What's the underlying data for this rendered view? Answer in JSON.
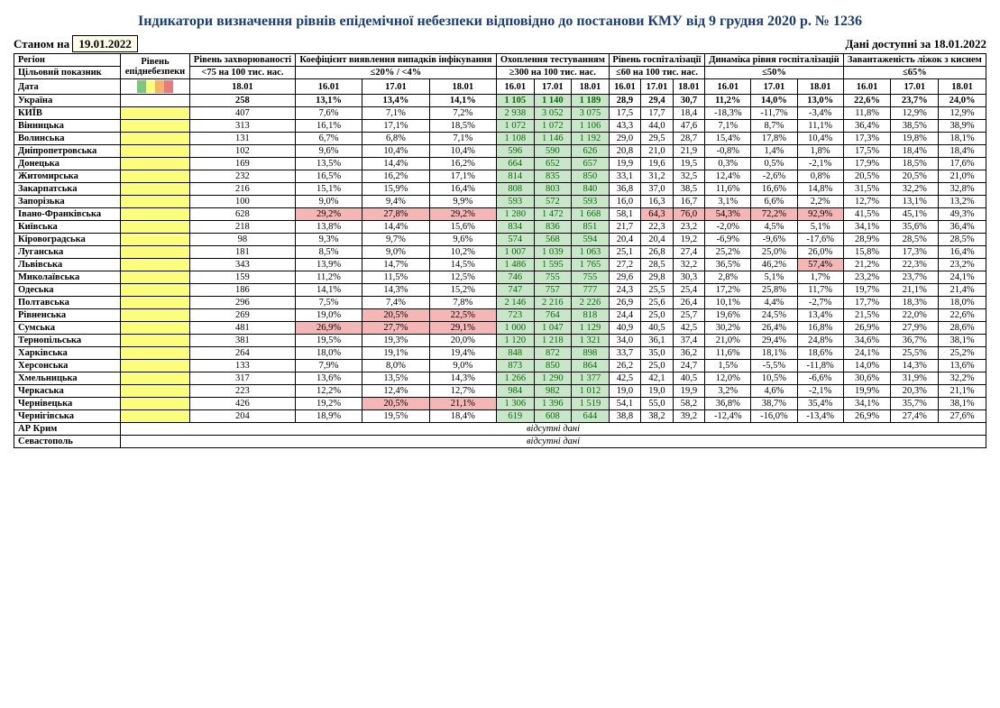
{
  "title": "Індикатори визначення рівнів епідемічної небезпеки відповідно до постанови КМУ від 9 грудня 2020 р. № 1236",
  "asOfLabel": "Станом на",
  "asOfDate": "19.01.2022",
  "availLabel": "Дані доступні за 18.01.2022",
  "headers": {
    "region": "Регіон",
    "danger": "Рівень епіднебезпеки",
    "incidence": "Рівень захворюваності",
    "detection": "Коефіцієнт виявлення випадків інфікування",
    "testing": "Охоплення тестуванням",
    "hosp": "Рівень госпіталізації",
    "hospDyn": "Динаміка рівня госпіталізацій",
    "oxygen": "Завантаженість ліжок з киснем",
    "target": "Цільовий показник",
    "date": "Дата",
    "t_incidence": "<75 на 100 тис. нас.",
    "t_detection": "≤20% / <4%",
    "t_testing": "≥300 на 100 тис. нас.",
    "t_hosp": "≤60 на 100 тис. нас.",
    "t_hospDyn": "≤50%",
    "t_oxygen": "≤65%",
    "d1": "16.01",
    "d2": "17.01",
    "d3": "18.01"
  },
  "noData": "відсутні дані",
  "legend": {
    "green": "#7cc57c",
    "yellow": "#fdfd7c",
    "orange": "#f5b26b",
    "red": "#e87c7c"
  },
  "cellColors": {
    "yellow": "#fdfd7c",
    "green": "#c8e6c8",
    "pink": "#f5b6b6"
  },
  "rows": [
    {
      "name": "Україна",
      "bold": true,
      "danger": "",
      "inc": "258",
      "det": [
        "13,1%",
        "13,4%",
        "14,1%"
      ],
      "detC": [
        "",
        "",
        ""
      ],
      "test": [
        "1 105",
        "1 140",
        "1 189"
      ],
      "testC": [
        "g",
        "g",
        "g"
      ],
      "hosp": [
        "28,9",
        "29,4",
        "30,7"
      ],
      "hdyn": [
        "11,2%",
        "14,0%",
        "13,0%"
      ],
      "hdynC": [
        "",
        "",
        ""
      ],
      "oxy": [
        "22,6%",
        "23,7%",
        "24,0%"
      ]
    },
    {
      "name": "КИЇВ",
      "danger": "y",
      "inc": "407",
      "det": [
        "7,6%",
        "7,1%",
        "7,2%"
      ],
      "detC": [
        "",
        "",
        ""
      ],
      "test": [
        "2 938",
        "3 052",
        "3 075"
      ],
      "testC": [
        "g",
        "g",
        "g"
      ],
      "hosp": [
        "17,5",
        "17,7",
        "18,4"
      ],
      "hdyn": [
        "-18,3%",
        "-11,7%",
        "-3,4%"
      ],
      "hdynC": [
        "",
        "",
        ""
      ],
      "oxy": [
        "11,8%",
        "12,9%",
        "12,9%"
      ]
    },
    {
      "name": "Вінницька",
      "danger": "y",
      "inc": "313",
      "det": [
        "16,1%",
        "17,1%",
        "18,5%"
      ],
      "detC": [
        "",
        "",
        ""
      ],
      "test": [
        "1 072",
        "1 072",
        "1 106"
      ],
      "testC": [
        "g",
        "g",
        "g"
      ],
      "hosp": [
        "43,3",
        "44,0",
        "47,6"
      ],
      "hdyn": [
        "7,1%",
        "8,7%",
        "11,1%"
      ],
      "hdynC": [
        "",
        "",
        ""
      ],
      "oxy": [
        "36,4%",
        "38,5%",
        "38,9%"
      ]
    },
    {
      "name": "Волинська",
      "danger": "y",
      "inc": "131",
      "det": [
        "6,7%",
        "6,8%",
        "7,1%"
      ],
      "detC": [
        "",
        "",
        ""
      ],
      "test": [
        "1 108",
        "1 146",
        "1 192"
      ],
      "testC": [
        "g",
        "g",
        "g"
      ],
      "hosp": [
        "29,0",
        "29,5",
        "28,7"
      ],
      "hdyn": [
        "15,4%",
        "17,8%",
        "10,4%"
      ],
      "hdynC": [
        "",
        "",
        ""
      ],
      "oxy": [
        "17,3%",
        "19,8%",
        "18,1%"
      ]
    },
    {
      "name": "Дніпропетровська",
      "danger": "y",
      "inc": "102",
      "det": [
        "9,6%",
        "10,4%",
        "10,4%"
      ],
      "detC": [
        "",
        "",
        ""
      ],
      "test": [
        "596",
        "590",
        "626"
      ],
      "testC": [
        "g",
        "g",
        "g"
      ],
      "hosp": [
        "20,8",
        "21,0",
        "21,9"
      ],
      "hdyn": [
        "-0,8%",
        "1,4%",
        "1,8%"
      ],
      "hdynC": [
        "",
        "",
        ""
      ],
      "oxy": [
        "17,5%",
        "18,4%",
        "18,4%"
      ]
    },
    {
      "name": "Донецька",
      "danger": "y",
      "inc": "169",
      "det": [
        "13,5%",
        "14,4%",
        "16,2%"
      ],
      "detC": [
        "",
        "",
        ""
      ],
      "test": [
        "664",
        "652",
        "657"
      ],
      "testC": [
        "g",
        "g",
        "g"
      ],
      "hosp": [
        "19,9",
        "19,6",
        "19,5"
      ],
      "hdyn": [
        "0,3%",
        "0,5%",
        "-2,1%"
      ],
      "hdynC": [
        "",
        "",
        ""
      ],
      "oxy": [
        "17,9%",
        "18,5%",
        "17,6%"
      ]
    },
    {
      "name": "Житомирська",
      "danger": "y",
      "inc": "232",
      "det": [
        "16,5%",
        "16,2%",
        "17,1%"
      ],
      "detC": [
        "",
        "",
        ""
      ],
      "test": [
        "814",
        "835",
        "850"
      ],
      "testC": [
        "g",
        "g",
        "g"
      ],
      "hosp": [
        "33,1",
        "31,2",
        "32,5"
      ],
      "hdyn": [
        "12,4%",
        "-2,6%",
        "0,8%"
      ],
      "hdynC": [
        "",
        "",
        ""
      ],
      "oxy": [
        "20,5%",
        "20,5%",
        "21,0%"
      ]
    },
    {
      "name": "Закарпатська",
      "danger": "y",
      "inc": "216",
      "det": [
        "15,1%",
        "15,9%",
        "16,4%"
      ],
      "detC": [
        "",
        "",
        ""
      ],
      "test": [
        "808",
        "803",
        "840"
      ],
      "testC": [
        "g",
        "g",
        "g"
      ],
      "hosp": [
        "36,8",
        "37,0",
        "38,5"
      ],
      "hdyn": [
        "11,6%",
        "16,6%",
        "14,8%"
      ],
      "hdynC": [
        "",
        "",
        ""
      ],
      "oxy": [
        "31,5%",
        "32,2%",
        "32,8%"
      ]
    },
    {
      "name": "Запорізька",
      "danger": "y",
      "inc": "100",
      "det": [
        "9,0%",
        "9,4%",
        "9,9%"
      ],
      "detC": [
        "",
        "",
        ""
      ],
      "test": [
        "593",
        "572",
        "593"
      ],
      "testC": [
        "g",
        "g",
        "g"
      ],
      "hosp": [
        "16,0",
        "16,3",
        "16,7"
      ],
      "hdyn": [
        "3,1%",
        "6,6%",
        "2,2%"
      ],
      "hdynC": [
        "",
        "",
        ""
      ],
      "oxy": [
        "12,7%",
        "13,1%",
        "13,2%"
      ]
    },
    {
      "name": "Івано-Франківська",
      "danger": "y",
      "inc": "628",
      "det": [
        "29,2%",
        "27,8%",
        "29,2%"
      ],
      "detC": [
        "p",
        "p",
        "p"
      ],
      "test": [
        "1 280",
        "1 472",
        "1 668"
      ],
      "testC": [
        "g",
        "g",
        "g"
      ],
      "hosp": [
        "58,1",
        "64,3",
        "76,0"
      ],
      "hospC": [
        "",
        "p",
        "p"
      ],
      "hdyn": [
        "54,3%",
        "72,2%",
        "92,9%"
      ],
      "hdynC": [
        "p",
        "p",
        "p"
      ],
      "oxy": [
        "41,5%",
        "45,1%",
        "49,3%"
      ]
    },
    {
      "name": "Київська",
      "danger": "y",
      "inc": "218",
      "det": [
        "13,8%",
        "14,4%",
        "15,6%"
      ],
      "detC": [
        "",
        "",
        ""
      ],
      "test": [
        "834",
        "836",
        "851"
      ],
      "testC": [
        "g",
        "g",
        "g"
      ],
      "hosp": [
        "21,7",
        "22,3",
        "23,2"
      ],
      "hdyn": [
        "-2,0%",
        "4,5%",
        "5,1%"
      ],
      "hdynC": [
        "",
        "",
        ""
      ],
      "oxy": [
        "34,1%",
        "35,6%",
        "36,4%"
      ]
    },
    {
      "name": "Кіровоградська",
      "danger": "y",
      "inc": "98",
      "det": [
        "9,3%",
        "9,7%",
        "9,6%"
      ],
      "detC": [
        "",
        "",
        ""
      ],
      "test": [
        "574",
        "568",
        "594"
      ],
      "testC": [
        "g",
        "g",
        "g"
      ],
      "hosp": [
        "20,4",
        "20,4",
        "19,2"
      ],
      "hdyn": [
        "-6,9%",
        "-9,6%",
        "-17,6%"
      ],
      "hdynC": [
        "",
        "",
        ""
      ],
      "oxy": [
        "28,9%",
        "28,5%",
        "28,5%"
      ]
    },
    {
      "name": "Луганська",
      "danger": "y",
      "inc": "181",
      "det": [
        "8,5%",
        "9,0%",
        "10,2%"
      ],
      "detC": [
        "",
        "",
        ""
      ],
      "test": [
        "1 007",
        "1 039",
        "1 063"
      ],
      "testC": [
        "g",
        "g",
        "g"
      ],
      "hosp": [
        "25,1",
        "26,8",
        "27,4"
      ],
      "hdyn": [
        "25,2%",
        "25,0%",
        "26,0%"
      ],
      "hdynC": [
        "",
        "",
        ""
      ],
      "oxy": [
        "15,8%",
        "17,3%",
        "16,4%"
      ]
    },
    {
      "name": "Львівська",
      "danger": "y",
      "inc": "343",
      "det": [
        "13,9%",
        "14,7%",
        "14,5%"
      ],
      "detC": [
        "",
        "",
        ""
      ],
      "test": [
        "1 486",
        "1 595",
        "1 765"
      ],
      "testC": [
        "g",
        "g",
        "g"
      ],
      "hosp": [
        "27,2",
        "28,5",
        "32,2"
      ],
      "hdyn": [
        "36,5%",
        "46,2%",
        "57,4%"
      ],
      "hdynC": [
        "",
        "",
        "p"
      ],
      "oxy": [
        "21,2%",
        "22,3%",
        "23,2%"
      ]
    },
    {
      "name": "Миколаївська",
      "danger": "y",
      "inc": "159",
      "det": [
        "11,2%",
        "11,5%",
        "12,5%"
      ],
      "detC": [
        "",
        "",
        ""
      ],
      "test": [
        "746",
        "755",
        "755"
      ],
      "testC": [
        "g",
        "g",
        "g"
      ],
      "hosp": [
        "29,6",
        "29,8",
        "30,3"
      ],
      "hdyn": [
        "2,8%",
        "5,1%",
        "1,7%"
      ],
      "hdynC": [
        "",
        "",
        ""
      ],
      "oxy": [
        "23,2%",
        "23,7%",
        "24,1%"
      ]
    },
    {
      "name": "Одеська",
      "danger": "y",
      "inc": "186",
      "det": [
        "14,1%",
        "14,3%",
        "15,2%"
      ],
      "detC": [
        "",
        "",
        ""
      ],
      "test": [
        "747",
        "757",
        "777"
      ],
      "testC": [
        "g",
        "g",
        "g"
      ],
      "hosp": [
        "24,3",
        "25,5",
        "25,4"
      ],
      "hdyn": [
        "17,2%",
        "25,8%",
        "11,7%"
      ],
      "hdynC": [
        "",
        "",
        ""
      ],
      "oxy": [
        "19,7%",
        "21,1%",
        "21,4%"
      ]
    },
    {
      "name": "Полтавська",
      "danger": "y",
      "inc": "296",
      "det": [
        "7,5%",
        "7,4%",
        "7,8%"
      ],
      "detC": [
        "",
        "",
        ""
      ],
      "test": [
        "2 146",
        "2 216",
        "2 226"
      ],
      "testC": [
        "g",
        "g",
        "g"
      ],
      "hosp": [
        "26,9",
        "25,6",
        "26,4"
      ],
      "hdyn": [
        "10,1%",
        "4,4%",
        "-2,7%"
      ],
      "hdynC": [
        "",
        "",
        ""
      ],
      "oxy": [
        "17,7%",
        "18,3%",
        "18,0%"
      ]
    },
    {
      "name": "Рівненська",
      "danger": "y",
      "inc": "269",
      "det": [
        "19,0%",
        "20,5%",
        "22,5%"
      ],
      "detC": [
        "",
        "p",
        "p"
      ],
      "test": [
        "723",
        "764",
        "818"
      ],
      "testC": [
        "g",
        "g",
        "g"
      ],
      "hosp": [
        "24,4",
        "25,0",
        "25,7"
      ],
      "hdyn": [
        "19,6%",
        "24,5%",
        "13,4%"
      ],
      "hdynC": [
        "",
        "",
        ""
      ],
      "oxy": [
        "21,5%",
        "22,0%",
        "22,6%"
      ]
    },
    {
      "name": "Сумська",
      "danger": "y",
      "inc": "481",
      "det": [
        "26,9%",
        "27,7%",
        "29,1%"
      ],
      "detC": [
        "p",
        "p",
        "p"
      ],
      "test": [
        "1 000",
        "1 047",
        "1 129"
      ],
      "testC": [
        "g",
        "g",
        "g"
      ],
      "hosp": [
        "40,9",
        "40,5",
        "42,5"
      ],
      "hdyn": [
        "30,2%",
        "26,4%",
        "16,8%"
      ],
      "hdynC": [
        "",
        "",
        ""
      ],
      "oxy": [
        "26,9%",
        "27,9%",
        "28,6%"
      ]
    },
    {
      "name": "Тернопільська",
      "danger": "y",
      "inc": "381",
      "det": [
        "19,5%",
        "19,3%",
        "20,0%"
      ],
      "detC": [
        "",
        "",
        ""
      ],
      "test": [
        "1 120",
        "1 218",
        "1 321"
      ],
      "testC": [
        "g",
        "g",
        "g"
      ],
      "hosp": [
        "34,0",
        "36,1",
        "37,4"
      ],
      "hdyn": [
        "21,0%",
        "29,4%",
        "24,8%"
      ],
      "hdynC": [
        "",
        "",
        ""
      ],
      "oxy": [
        "34,6%",
        "36,7%",
        "38,1%"
      ]
    },
    {
      "name": "Харківська",
      "danger": "y",
      "inc": "264",
      "det": [
        "18,0%",
        "19,1%",
        "19,4%"
      ],
      "detC": [
        "",
        "",
        ""
      ],
      "test": [
        "848",
        "872",
        "898"
      ],
      "testC": [
        "g",
        "g",
        "g"
      ],
      "hosp": [
        "33,7",
        "35,0",
        "36,2"
      ],
      "hdyn": [
        "11,6%",
        "18,1%",
        "18,6%"
      ],
      "hdynC": [
        "",
        "",
        ""
      ],
      "oxy": [
        "24,1%",
        "25,5%",
        "25,2%"
      ]
    },
    {
      "name": "Херсонська",
      "danger": "y",
      "inc": "133",
      "det": [
        "7,9%",
        "8,0%",
        "9,0%"
      ],
      "detC": [
        "",
        "",
        ""
      ],
      "test": [
        "873",
        "850",
        "864"
      ],
      "testC": [
        "g",
        "g",
        "g"
      ],
      "hosp": [
        "26,2",
        "25,0",
        "24,7"
      ],
      "hdyn": [
        "1,5%",
        "-5,5%",
        "-11,8%"
      ],
      "hdynC": [
        "",
        "",
        ""
      ],
      "oxy": [
        "14,0%",
        "14,3%",
        "13,6%"
      ]
    },
    {
      "name": "Хмельницька",
      "danger": "y",
      "inc": "317",
      "det": [
        "13,6%",
        "13,5%",
        "14,3%"
      ],
      "detC": [
        "",
        "",
        ""
      ],
      "test": [
        "1 266",
        "1 290",
        "1 377"
      ],
      "testC": [
        "g",
        "g",
        "g"
      ],
      "hosp": [
        "42,5",
        "42,1",
        "40,5"
      ],
      "hdyn": [
        "12,0%",
        "10,5%",
        "-6,6%"
      ],
      "hdynC": [
        "",
        "",
        ""
      ],
      "oxy": [
        "30,6%",
        "31,9%",
        "32,2%"
      ]
    },
    {
      "name": "Черкаська",
      "danger": "y",
      "inc": "223",
      "det": [
        "12,2%",
        "12,4%",
        "12,7%"
      ],
      "detC": [
        "",
        "",
        ""
      ],
      "test": [
        "984",
        "982",
        "1 012"
      ],
      "testC": [
        "g",
        "g",
        "g"
      ],
      "hosp": [
        "19,0",
        "19,0",
        "19,9"
      ],
      "hdyn": [
        "3,2%",
        "4,6%",
        "-2,1%"
      ],
      "hdynC": [
        "",
        "",
        ""
      ],
      "oxy": [
        "19,9%",
        "20,3%",
        "21,1%"
      ]
    },
    {
      "name": "Чернівецька",
      "danger": "y",
      "inc": "426",
      "det": [
        "19,2%",
        "20,5%",
        "21,1%"
      ],
      "detC": [
        "",
        "p",
        "p"
      ],
      "test": [
        "1 306",
        "1 396",
        "1 519"
      ],
      "testC": [
        "g",
        "g",
        "g"
      ],
      "hosp": [
        "54,1",
        "55,0",
        "58,2"
      ],
      "hdyn": [
        "36,8%",
        "38,7%",
        "35,4%"
      ],
      "hdynC": [
        "",
        "",
        ""
      ],
      "oxy": [
        "34,1%",
        "35,7%",
        "38,1%"
      ]
    },
    {
      "name": "Чернігівська",
      "danger": "y",
      "inc": "204",
      "det": [
        "18,9%",
        "19,5%",
        "18,4%"
      ],
      "detC": [
        "",
        "",
        ""
      ],
      "test": [
        "619",
        "608",
        "644"
      ],
      "testC": [
        "g",
        "g",
        "g"
      ],
      "hosp": [
        "38,8",
        "38,2",
        "39,2"
      ],
      "hdyn": [
        "-12,4%",
        "-16,0%",
        "-13,4%"
      ],
      "hdynC": [
        "",
        "",
        ""
      ],
      "oxy": [
        "26,9%",
        "27,4%",
        "27,6%"
      ]
    },
    {
      "name": "АР Крим",
      "noData": true
    },
    {
      "name": "Севастополь",
      "noData": true
    }
  ]
}
